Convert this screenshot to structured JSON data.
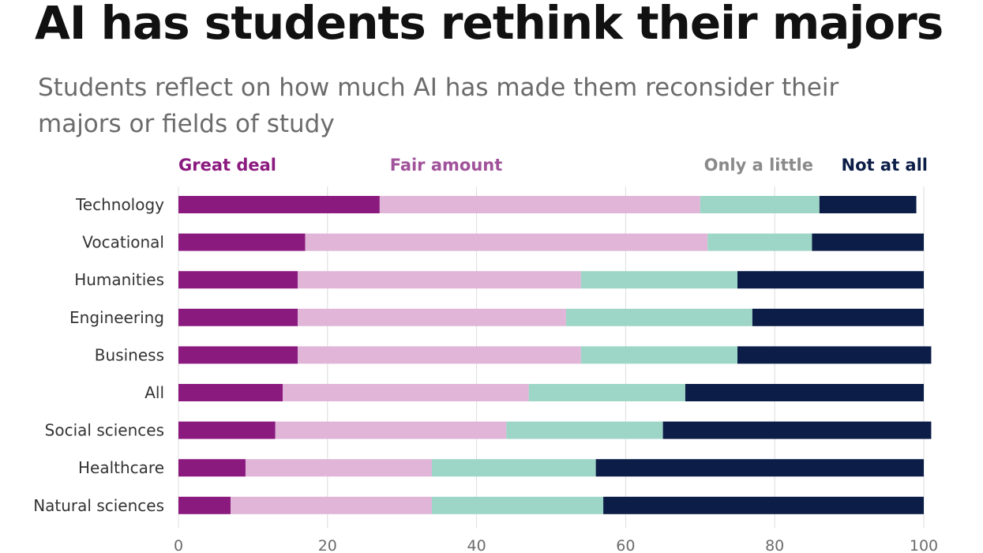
{
  "title": "AI has students rethink their majors",
  "subtitle": "Students reflect on how much AI has made them reconsider their majors or fields of study",
  "colors": {
    "great_deal": "#8b1a7f",
    "fair_amount": "#e0b5d8",
    "only_a_little": "#9dd6c6",
    "not_at_all": "#0c1e47",
    "grid": "#dcdcdc",
    "axis_text": "#6b6b6b",
    "label_text": "#333333"
  },
  "chart_data": {
    "type": "bar",
    "orientation": "horizontal",
    "stacked": true,
    "title": "AI has students rethink their majors",
    "subtitle": "Students reflect on how much AI has made them reconsider their majors or fields of study",
    "categories": [
      "Technology",
      "Vocational",
      "Humanities",
      "Engineering",
      "Business",
      "All",
      "Social sciences",
      "Healthcare",
      "Natural sciences"
    ],
    "series": [
      {
        "name": "Great deal",
        "color": "#8b1a7f",
        "values": [
          27,
          17,
          16,
          16,
          16,
          14,
          13,
          9,
          7
        ]
      },
      {
        "name": "Fair amount",
        "color": "#e0b5d8",
        "values": [
          43,
          54,
          38,
          36,
          38,
          33,
          31,
          25,
          27
        ]
      },
      {
        "name": "Only a little",
        "color": "#9dd6c6",
        "values": [
          16,
          14,
          21,
          25,
          21,
          21,
          21,
          22,
          23
        ]
      },
      {
        "name": "Not at all",
        "color": "#0c1e47",
        "values": [
          13,
          15,
          25,
          23,
          26,
          32,
          36,
          44,
          43
        ]
      }
    ],
    "xlim": [
      0,
      100
    ],
    "xticks": [
      0,
      20,
      40,
      60,
      80,
      100
    ],
    "grid": true,
    "legend_position": "top"
  }
}
